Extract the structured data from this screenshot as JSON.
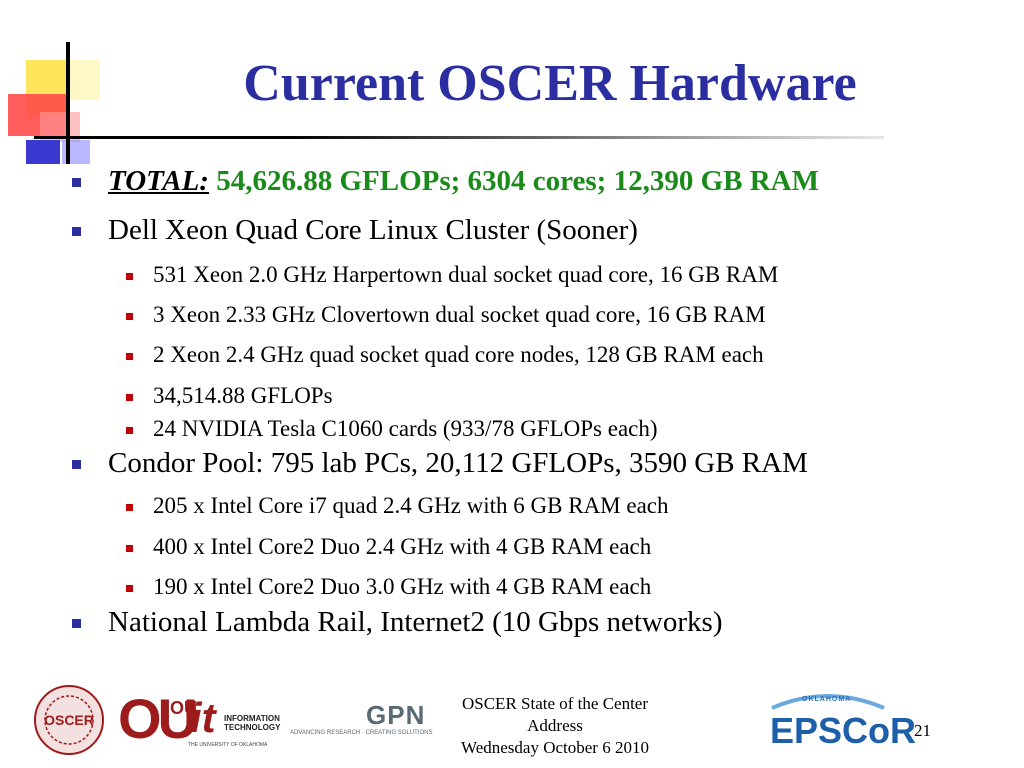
{
  "slide": {
    "title": "Current OSCER Hardware",
    "total_label": "TOTAL:",
    "total_value": " 54,626.88 GFLOPs; 6304 cores; 12,390 GB RAM",
    "bullets": [
      "Dell Xeon Quad Core Linux Cluster (Sooner)",
      "531 Xeon 2.0 GHz Harpertown dual socket quad core, 16 GB RAM",
      "3 Xeon 2.33 GHz Clovertown dual socket quad core, 16 GB RAM",
      "2 Xeon 2.4 GHz quad socket quad core nodes, 128 GB RAM each",
      "34,514.88 GFLOPs",
      "24 NVIDIA Tesla C1060 cards (933/78 GFLOPs each)",
      "Condor Pool: 795 lab PCs, 20,112 GFLOPs, 3590 GB RAM",
      "205 x Intel Core i7 quad 2.4 GHz with 6 GB RAM each",
      "400 x Intel Core2 Duo 2.4 GHz with 4 GB RAM each",
      "190 x Intel Core2 Duo 3.0 GHz with 4 GB RAM each",
      "National Lambda Rail, Internet2 (10 Gbps networks)"
    ]
  },
  "footer": {
    "line1": "OSCER State of the Center Address",
    "line2": "Wednesday October 6 2010",
    "page_number": "21"
  },
  "logos": {
    "oscer_seal": "OSCER",
    "ou": "OU",
    "it_ou": "OU",
    "it": "it",
    "it_text_1": "INFORMATION",
    "it_text_2": "TECHNOLOGY",
    "it_sub": "THE UNIVERSITY OF OKLAHOMA",
    "gpn": "GPN",
    "gpn_sub": "ADVANCING RESEARCH · CREATING SOLUTIONS",
    "epscor_state": "OKLAHOMA",
    "epscor": "EPSCoR"
  },
  "colors": {
    "title": "#2b2ea0",
    "total_value": "#1a8a1a",
    "bullet_l1": "#2b2ea0",
    "bullet_l2": "#c00000",
    "ou_crimson": "#9e1b1b"
  }
}
